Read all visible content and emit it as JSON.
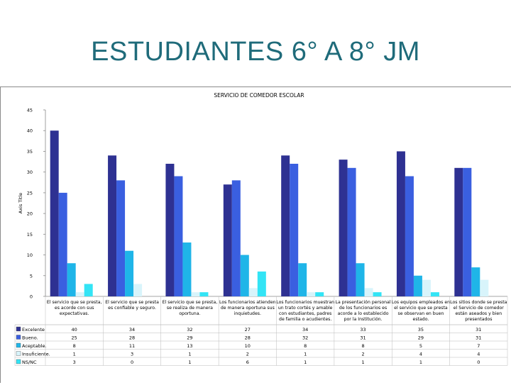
{
  "slide": {
    "title": "ESTUDIANTES 6° A 8° JM"
  },
  "chart_data": {
    "type": "bar",
    "title": "SERVICIO DE COMEDOR ESCOLAR",
    "xlabel": "",
    "ylabel": "Axis Title",
    "ylim": [
      0,
      45
    ],
    "yticks": [
      0,
      5,
      10,
      15,
      20,
      25,
      30,
      35,
      40,
      45
    ],
    "grid": false,
    "legend": "data-table-left",
    "categories": [
      [
        "El servicio que se presta,",
        "es acorde con sus",
        "expectativas."
      ],
      [
        "El servicio que se presta",
        "es confiable y seguro."
      ],
      [
        "El servicio que se presta,",
        "se realiza de manera",
        "oportuna."
      ],
      [
        "Los funcionarios atienden",
        "de manera oportuna sus",
        "inquietudes."
      ],
      [
        "Los funcionarios muestran",
        "un trato cortés y amable",
        "con estudiantes, padres",
        "de familia o acudientes."
      ],
      [
        "La presentación personal",
        "de los funcionarios es",
        "acorde a lo establecido",
        "por la Institución."
      ],
      [
        "Los equipos empleados en",
        "el servicio que se presta",
        "se observan en buen",
        "estado."
      ],
      [
        "Los sitios donde se presta",
        "el Servicio de comedor",
        "están aseados y bien",
        "presentados"
      ]
    ],
    "series": [
      {
        "name": "Excelente",
        "color": "#2e3192",
        "values": [
          40,
          34,
          32,
          27,
          34,
          33,
          35,
          31
        ]
      },
      {
        "name": "Bueno.",
        "color": "#3a5fe0",
        "values": [
          25,
          28,
          29,
          28,
          32,
          31,
          29,
          31
        ]
      },
      {
        "name": "Aceptable.",
        "color": "#1fb5e8",
        "values": [
          8,
          11,
          13,
          10,
          8,
          8,
          5,
          7
        ]
      },
      {
        "name": "Insuficiente.",
        "color": "#d8f4fb",
        "values": [
          1,
          3,
          1,
          2,
          1,
          2,
          4,
          4
        ]
      },
      {
        "name": "NS/NC",
        "color": "#33e4f5",
        "values": [
          3,
          0,
          1,
          6,
          1,
          1,
          1,
          0
        ]
      }
    ]
  }
}
